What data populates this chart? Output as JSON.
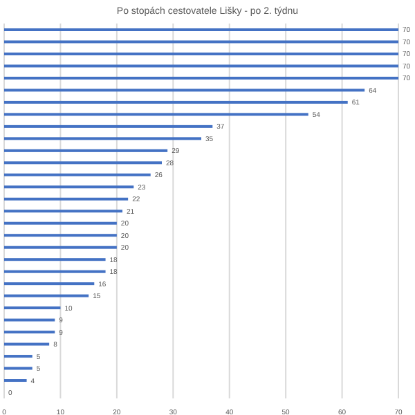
{
  "chart_data": {
    "type": "bar",
    "orientation": "horizontal",
    "title": "Po stopách cestovatele Lišky - po 2. týdnu",
    "categories": [
      null,
      null,
      null,
      null,
      null,
      null,
      null,
      null,
      null,
      null,
      null,
      null,
      null,
      null,
      null,
      null,
      null,
      null,
      null,
      null,
      null,
      null,
      null,
      null,
      null,
      null,
      null,
      null,
      null,
      null,
      null
    ],
    "values": [
      70,
      70,
      70,
      70,
      70,
      64,
      61,
      54,
      37,
      35,
      29,
      28,
      26,
      23,
      22,
      21,
      20,
      20,
      20,
      18,
      18,
      16,
      15,
      10,
      9,
      9,
      8,
      5,
      5,
      4,
      0
    ],
    "color": "#4472c4",
    "xlim": [
      0,
      70
    ],
    "xticks": [
      0,
      10,
      20,
      30,
      40,
      50,
      60,
      70
    ],
    "grid": "x",
    "data_labels": true
  }
}
